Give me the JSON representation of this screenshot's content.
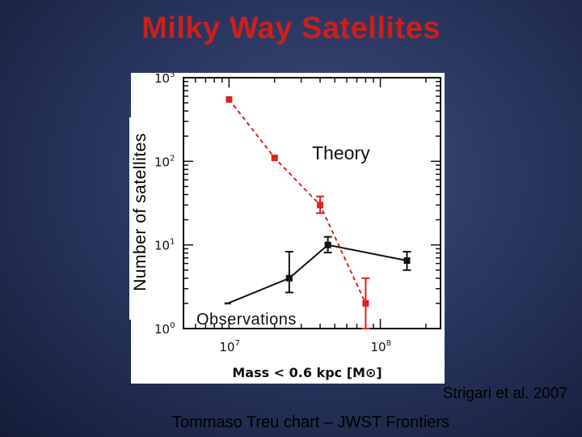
{
  "slide": {
    "title": "Milky Way Satellites",
    "credit": "Strigari et al. 2007",
    "footer": "Tommaso Treu chart – JWST Frontiers"
  },
  "colors": {
    "theory": "#e02020",
    "observations": "#111111",
    "title": "#cc1f1a"
  },
  "chart_data": {
    "type": "line",
    "title": "Milky Way Satellites",
    "ylabel": "Number of satellites",
    "xlabel": "Mass  <  0.6 kpc  [M⊙]",
    "x_scale": "log",
    "y_scale": "log",
    "xlim": [
      5000000,
      250000000
    ],
    "ylim": [
      1,
      1000
    ],
    "x_ticks": [
      {
        "value": 10000000,
        "base": "10",
        "exp": "7"
      },
      {
        "value": 100000000,
        "base": "10",
        "exp": "8"
      }
    ],
    "y_ticks": [
      {
        "value": 1,
        "base": "10",
        "exp": "0"
      },
      {
        "value": 10,
        "base": "10",
        "exp": "1"
      },
      {
        "value": 100,
        "base": "10",
        "exp": "2"
      },
      {
        "value": 1000,
        "base": "10",
        "exp": "3"
      }
    ],
    "series": [
      {
        "name": "Theory",
        "key": "theory",
        "style": "dashed",
        "points": [
          {
            "x": 10000000,
            "y": 550
          },
          {
            "x": 20000000,
            "y": 110
          },
          {
            "x": 40000000,
            "y": 30,
            "err_low": 24,
            "err_high": 38
          },
          {
            "x": 80000000,
            "y": 2,
            "err_low": 1,
            "err_high": 4
          }
        ]
      },
      {
        "name": "Observations",
        "key": "observations",
        "style": "solid",
        "points": [
          {
            "x": 9800000,
            "y": 2
          },
          {
            "x": 25000000,
            "y": 4,
            "err_low": 2.7,
            "err_high": 8.3
          },
          {
            "x": 45000000,
            "y": 10,
            "err_low": 8.1,
            "err_high": 12.5
          },
          {
            "x": 150000000,
            "y": 6.5,
            "err_low": 5,
            "err_high": 8.3
          }
        ]
      }
    ],
    "annotations": [
      "Theory",
      "Observations"
    ]
  }
}
